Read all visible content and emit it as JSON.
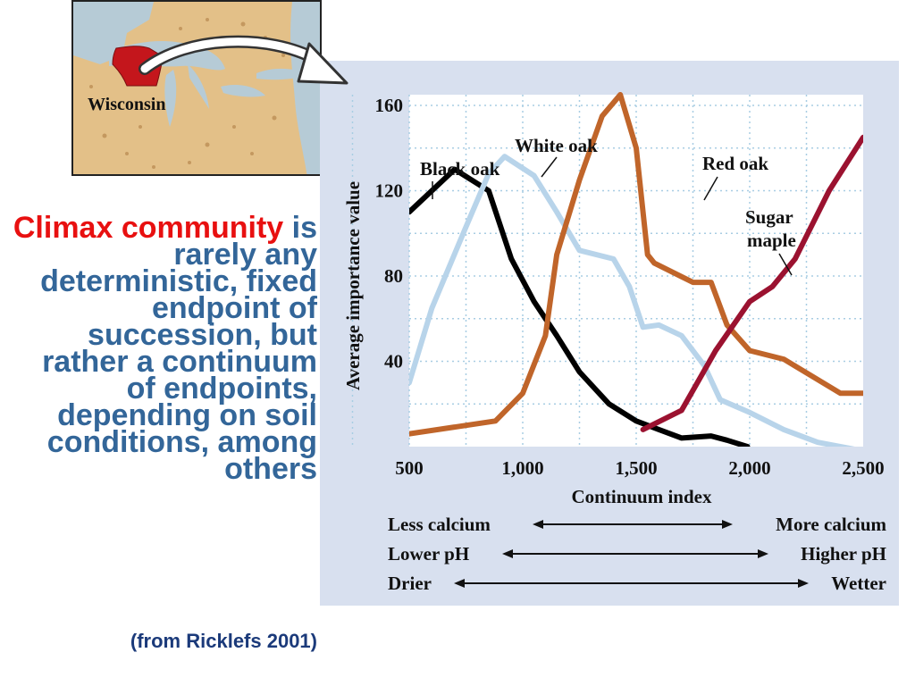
{
  "map": {
    "label": "Wisconsin",
    "highlight_color": "#c4161c"
  },
  "caption": {
    "highlight": "Climax community",
    "text": "is rarely any deterministic, fixed endpoint of succession, but rather a continuum of endpoints, depending on soil conditions, among others",
    "source": "(from Ricklefs 2001)",
    "highlight_color": "#e81010",
    "text_color": "#336699"
  },
  "chart_data": {
    "type": "line",
    "xlabel": "Continuum index",
    "ylabel": "Average importance value",
    "xlim": [
      500,
      2500
    ],
    "ylim": [
      0,
      165
    ],
    "x_ticks": [
      "500",
      "1,000",
      "1,500",
      "2,000",
      "2,500"
    ],
    "y_ticks": [
      "40",
      "80",
      "120",
      "160"
    ],
    "grid": true,
    "series": [
      {
        "name": "Black oak",
        "color": "#000000",
        "points": [
          [
            500,
            110
          ],
          [
            700,
            130
          ],
          [
            850,
            120
          ],
          [
            950,
            88
          ],
          [
            1050,
            68
          ],
          [
            1150,
            52
          ],
          [
            1250,
            35
          ],
          [
            1380,
            20
          ],
          [
            1500,
            12
          ],
          [
            1600,
            8
          ],
          [
            1700,
            4
          ],
          [
            1830,
            5
          ],
          [
            1900,
            3
          ],
          [
            1990,
            0
          ]
        ]
      },
      {
        "name": "White oak",
        "color": "#b8d4ea",
        "points": [
          [
            500,
            30
          ],
          [
            600,
            65
          ],
          [
            750,
            103
          ],
          [
            850,
            128
          ],
          [
            920,
            136
          ],
          [
            1050,
            127
          ],
          [
            1150,
            110
          ],
          [
            1250,
            92
          ],
          [
            1400,
            88
          ],
          [
            1470,
            75
          ],
          [
            1530,
            56
          ],
          [
            1600,
            57
          ],
          [
            1700,
            52
          ],
          [
            1800,
            38
          ],
          [
            1870,
            22
          ],
          [
            2000,
            16
          ],
          [
            2150,
            8
          ],
          [
            2300,
            2
          ],
          [
            2500,
            -2
          ]
        ]
      },
      {
        "name": "Red oak",
        "color": "#c0652a",
        "points": [
          [
            500,
            6
          ],
          [
            880,
            12
          ],
          [
            1000,
            25
          ],
          [
            1100,
            52
          ],
          [
            1150,
            90
          ],
          [
            1250,
            125
          ],
          [
            1350,
            155
          ],
          [
            1430,
            165
          ],
          [
            1500,
            140
          ],
          [
            1550,
            90
          ],
          [
            1580,
            86
          ],
          [
            1750,
            77
          ],
          [
            1830,
            77
          ],
          [
            1900,
            57
          ],
          [
            2000,
            45
          ],
          [
            2150,
            41
          ],
          [
            2400,
            25
          ],
          [
            2500,
            25
          ]
        ]
      },
      {
        "name": "Sugar maple",
        "color": "#9b1230",
        "points": [
          [
            1530,
            8
          ],
          [
            1700,
            17
          ],
          [
            1850,
            45
          ],
          [
            2000,
            68
          ],
          [
            2100,
            75
          ],
          [
            2200,
            88
          ],
          [
            2350,
            120
          ],
          [
            2500,
            145
          ]
        ]
      }
    ],
    "series_labels": {
      "black_oak": "Black oak",
      "white_oak": "White oak",
      "red_oak": "Red oak",
      "sugar_maple_1": "Sugar",
      "sugar_maple_2": "maple"
    },
    "gradients": [
      {
        "left": "Less calcium",
        "right": "More calcium"
      },
      {
        "left": "Lower pH",
        "right": "Higher pH"
      },
      {
        "left": "Drier",
        "right": "Wetter"
      }
    ]
  }
}
